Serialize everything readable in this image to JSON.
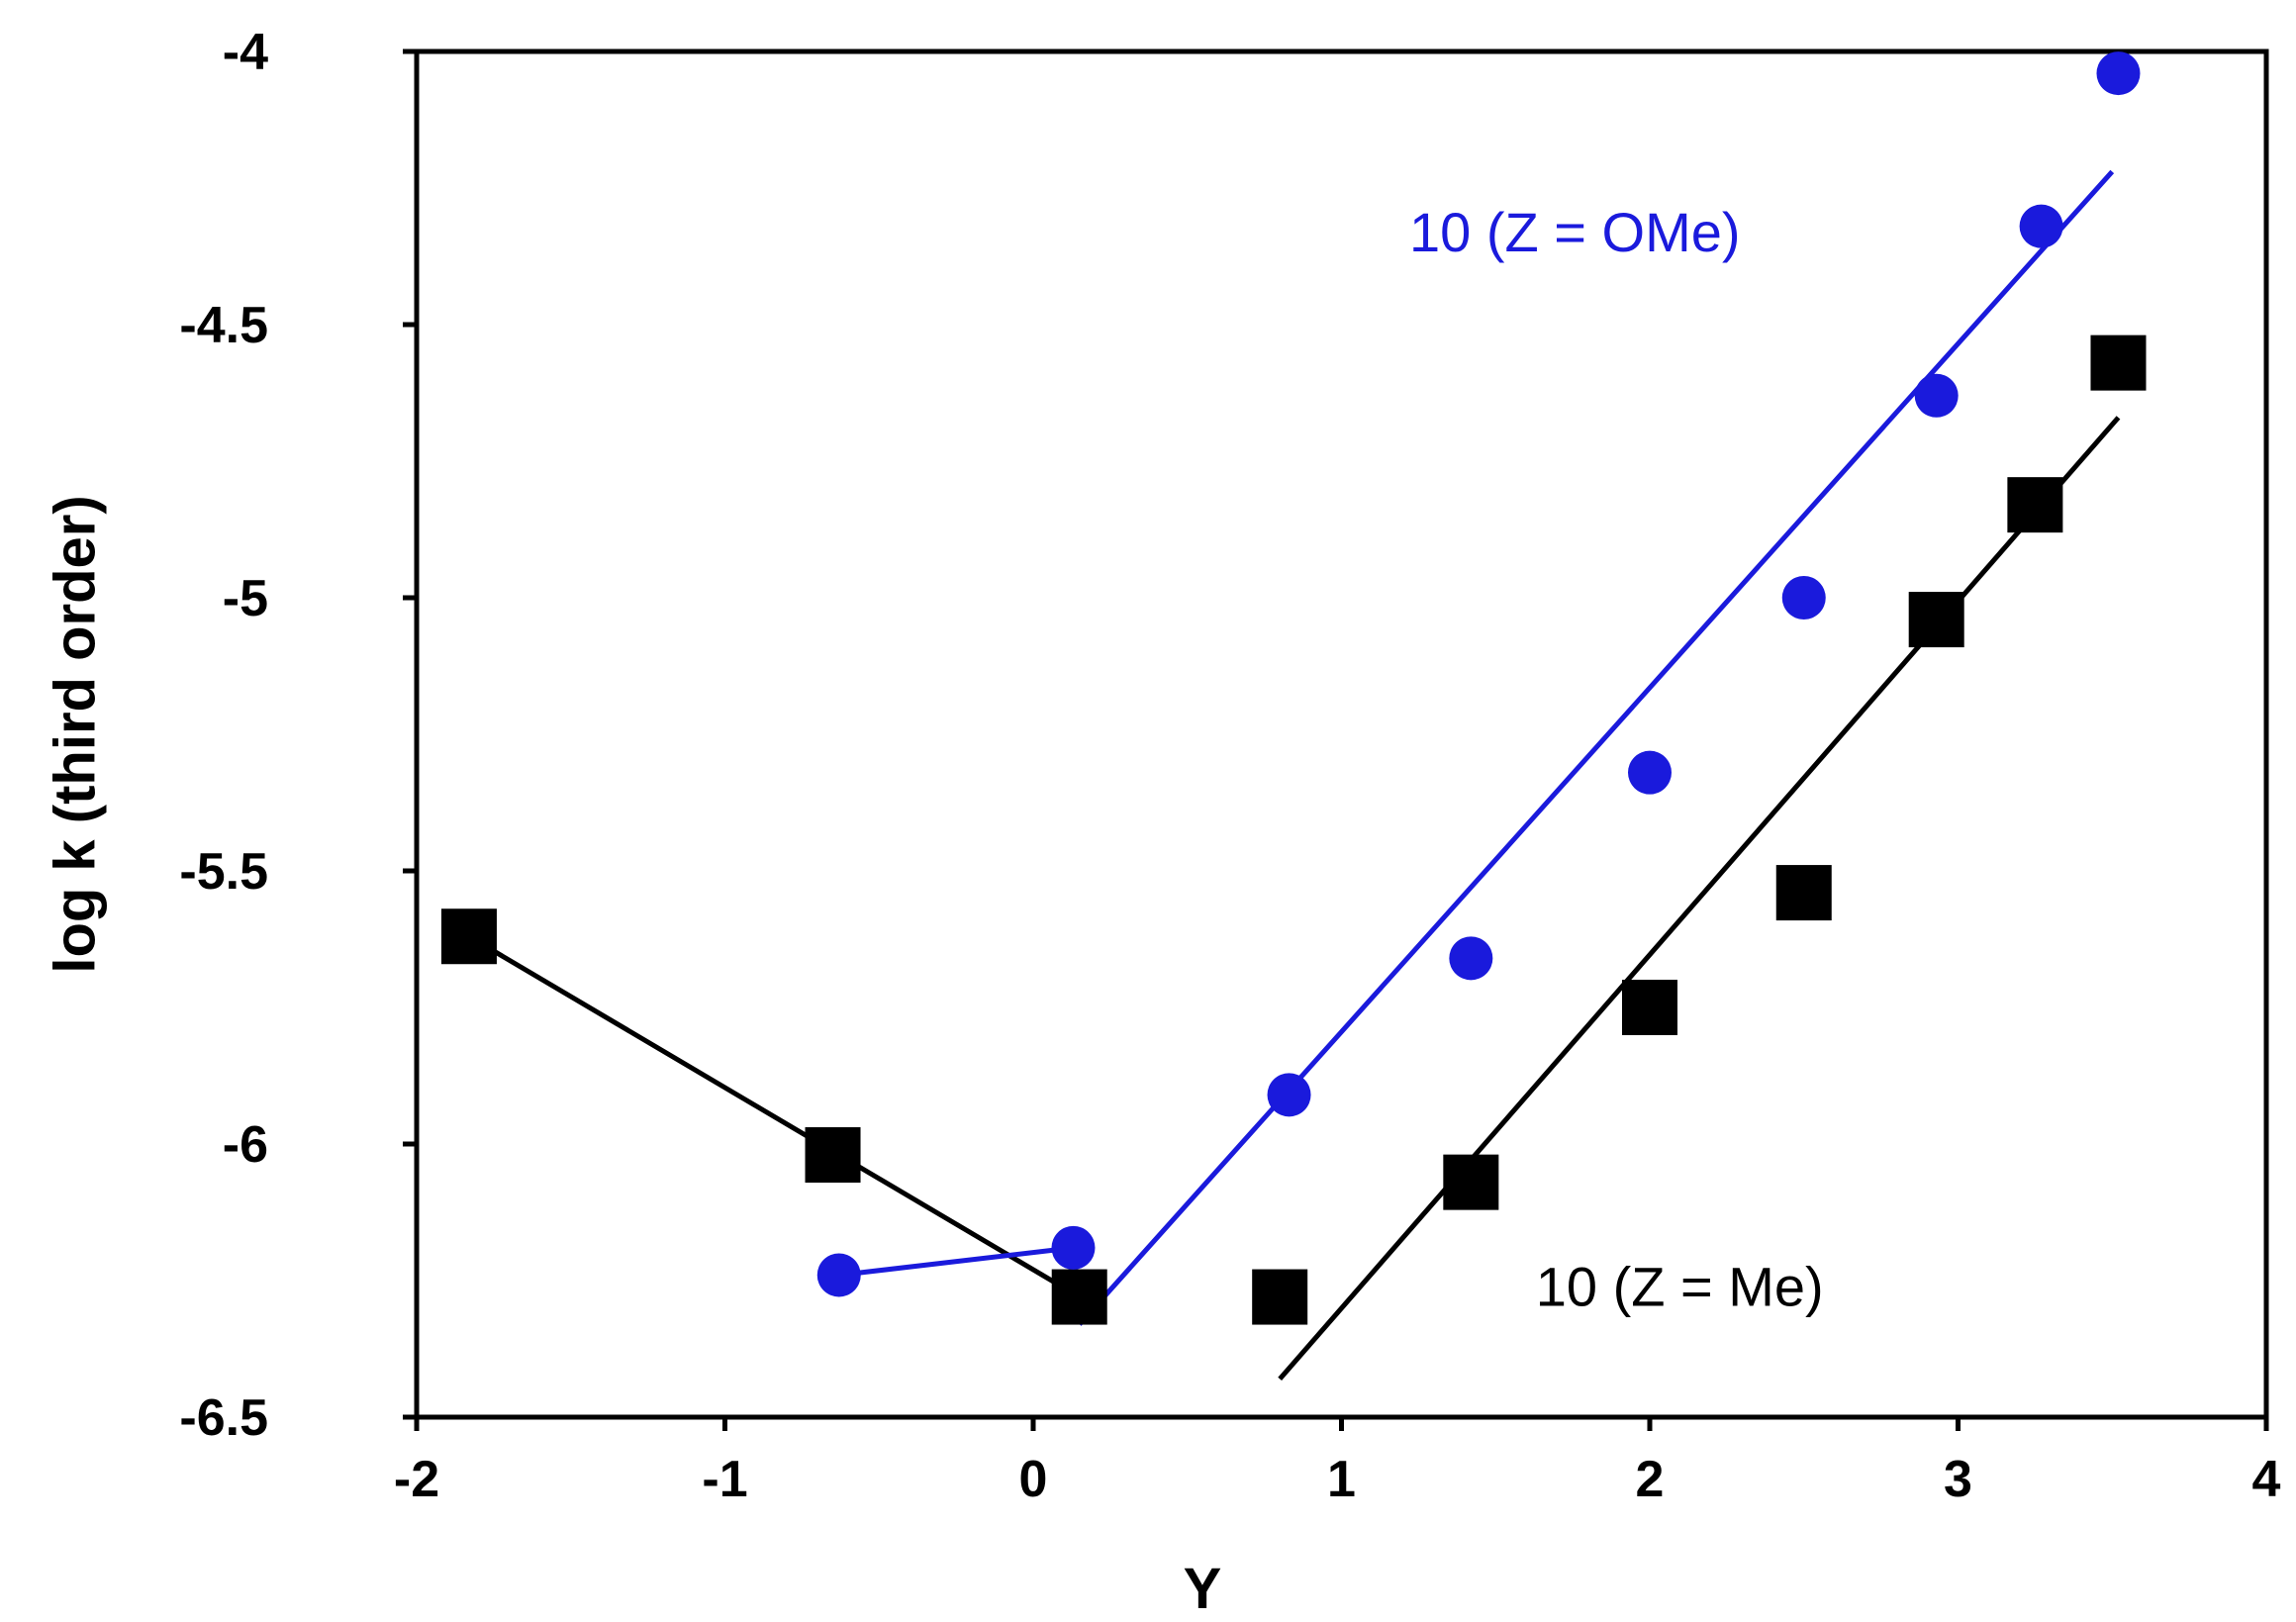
{
  "chart_data": {
    "type": "scatter",
    "x_label": "Y",
    "y_label": "log k (third order)",
    "xlim": [
      -2,
      4
    ],
    "ylim": [
      -6.5,
      -4
    ],
    "xticks": [
      -2,
      -1,
      0,
      1,
      2,
      3,
      4
    ],
    "yticks": [
      -6.5,
      -6,
      -5.5,
      -5,
      -4.5,
      -4
    ],
    "series": [
      {
        "marker": "square",
        "color": "#000000",
        "x": [
          -1.83,
          -0.65,
          0.15,
          0.8,
          1.42,
          2.0,
          2.5,
          2.93,
          3.25,
          3.52
        ],
        "values": [
          -5.62,
          -6.02,
          -6.28,
          -6.28,
          -6.07,
          -5.75,
          -5.54,
          -5.04,
          -4.83,
          -4.57
        ]
      },
      {
        "marker": "circle",
        "color": "#1a1adc",
        "x": [
          -0.63,
          0.13,
          0.83,
          1.42,
          2.0,
          2.5,
          2.93,
          3.27,
          3.52
        ],
        "values": [
          -6.24,
          -6.19,
          -5.91,
          -5.66,
          -5.32,
          -5.0,
          -4.63,
          -4.32,
          -4.04
        ]
      }
    ],
    "lines": [
      {
        "color": "#000000",
        "x": [
          -1.83,
          0.15
        ],
        "values": [
          -5.62,
          -6.28
        ]
      },
      {
        "color": "#000000",
        "x": [
          0.8,
          3.52
        ],
        "values": [
          -6.43,
          -4.67
        ]
      },
      {
        "color": "#1a1adc",
        "x": [
          -0.63,
          0.13
        ],
        "values": [
          -6.24,
          -6.19
        ]
      },
      {
        "color": "#1a1adc",
        "x": [
          0.15,
          3.5
        ],
        "values": [
          -6.33,
          -4.22
        ]
      }
    ],
    "annotations": [
      {
        "text": "10 (Z = OMe)",
        "x": 1.22,
        "y": -4.33,
        "color": "#1a1adc"
      },
      {
        "text": "10 (Z = Me)",
        "x": 1.63,
        "y": -6.26,
        "color": "#000000"
      }
    ]
  }
}
